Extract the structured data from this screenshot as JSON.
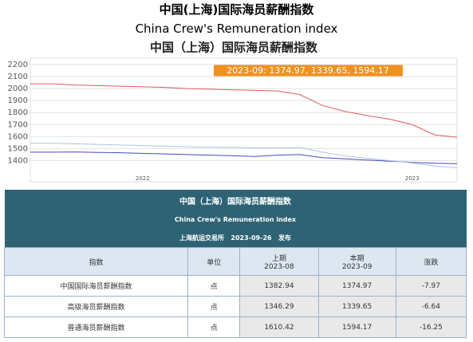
{
  "page_title": "中国(上海)国际海员薪酬指数",
  "page_subtitle": "China Crew's Remuneration index",
  "chart_data": {
    "type": "line",
    "title": "中国（上海）国际海员薪酬指数",
    "annotation": "2023-09: 1374.97, 1339.65, 1594.17",
    "categories": [
      null,
      null,
      null,
      null,
      null,
      "2022",
      null,
      null,
      null,
      null,
      null,
      null,
      null,
      null,
      null,
      null,
      null,
      "2023",
      null,
      null
    ],
    "series": [
      {
        "color": "#e05a5a",
        "values": [
          2040,
          2040,
          2030,
          2025,
          2020,
          2015,
          2010,
          2000,
          1995,
          1990,
          1985,
          1980,
          1950,
          1860,
          1810,
          1775,
          1745,
          1700,
          1615,
          1594.17
        ]
      },
      {
        "color": "#4a4ac4",
        "values": [
          1470,
          1470,
          1472,
          1468,
          1465,
          1460,
          1455,
          1450,
          1445,
          1440,
          1435,
          1445,
          1450,
          1425,
          1415,
          1405,
          1395,
          1385,
          1378,
          1374.97
        ]
      },
      {
        "color": "#a8c4e4",
        "values": [
          1545,
          1545,
          1540,
          1535,
          1530,
          1525,
          1520,
          1515,
          1512,
          1510,
          1508,
          1505,
          1510,
          1470,
          1440,
          1420,
          1400,
          1380,
          1355,
          1339.65
        ]
      }
    ],
    "ylim": [
      1330,
      2200
    ],
    "yticks": [
      1400,
      1500,
      1600,
      1700,
      1800,
      1900,
      2000,
      2100,
      2200
    ],
    "grid": true
  },
  "table": {
    "title": "中国（上海）国际海员薪酬指数",
    "subtitle": "China Crew's Remuneration index",
    "publisher": "上海航运交易所",
    "date": "2023-09-26",
    "publish": "发布",
    "columns": [
      "指数",
      "单位",
      "上期",
      "本期",
      "涨跌"
    ],
    "column_periods": [
      null,
      null,
      "2023-08",
      "2023-09",
      null
    ],
    "rows": [
      [
        "中国国际海员薪酬指数",
        "点",
        1382.94,
        1374.97,
        -7.97
      ],
      [
        "高级海员薪酬指数",
        "点",
        1346.29,
        1339.65,
        -6.64
      ],
      [
        "普通海员薪酬指数",
        "点",
        1610.42,
        1594.17,
        -16.25
      ]
    ]
  }
}
